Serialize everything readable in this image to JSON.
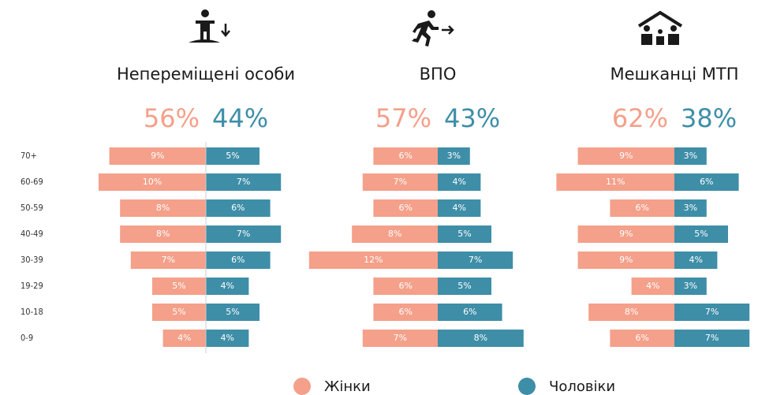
{
  "chart_data": {
    "type": "bar",
    "categories": [
      "70+",
      "60-69",
      "50-59",
      "40-49",
      "30-39",
      "19-29",
      "10-18",
      "0-9"
    ],
    "series": [
      {
        "name": "Жінки",
        "color": "#f4a08a"
      },
      {
        "name": "Чоловіки",
        "color": "#3e8ea8"
      }
    ],
    "panels": [
      {
        "title": "Непереміщені особи",
        "totals": [
          56,
          44
        ],
        "total_labels": [
          "56%",
          "44%"
        ],
        "values": [
          [
            9,
            10,
            8,
            8,
            7,
            5,
            5,
            4
          ],
          [
            5,
            7,
            6,
            7,
            6,
            4,
            5,
            4
          ]
        ],
        "value_labels": [
          [
            "9%",
            "10%",
            "8%",
            "8%",
            "7%",
            "5%",
            "5%",
            "4%"
          ],
          [
            "5%",
            "7%",
            "6%",
            "7%",
            "6%",
            "4%",
            "5%",
            "4%"
          ]
        ]
      },
      {
        "title": "ВПО",
        "totals": [
          57,
          43
        ],
        "total_labels": [
          "57%",
          "43%"
        ],
        "values": [
          [
            6,
            7,
            6,
            8,
            12,
            6,
            6,
            7
          ],
          [
            3,
            4,
            4,
            5,
            7,
            5,
            6,
            8
          ]
        ],
        "value_labels": [
          [
            "6%",
            "7%",
            "6%",
            "8%",
            "12%",
            "6%",
            "6%",
            "7%"
          ],
          [
            "3%",
            "4%",
            "4%",
            "5%",
            "7%",
            "5%",
            "6%",
            "8%"
          ]
        ]
      },
      {
        "title": "Мешканці МТП",
        "totals": [
          62,
          38
        ],
        "total_labels": [
          "62%",
          "38%"
        ],
        "values": [
          [
            9,
            11,
            6,
            9,
            9,
            4,
            8,
            6
          ],
          [
            3,
            6,
            3,
            5,
            4,
            3,
            7,
            7
          ]
        ],
        "value_labels": [
          [
            "9%",
            "11%",
            "6%",
            "9%",
            "9%",
            "4%",
            "8%",
            "6%"
          ],
          [
            "3%",
            "6%",
            "3%",
            "5%",
            "4%",
            "3%",
            "7%",
            "7%"
          ]
        ]
      }
    ]
  }
}
